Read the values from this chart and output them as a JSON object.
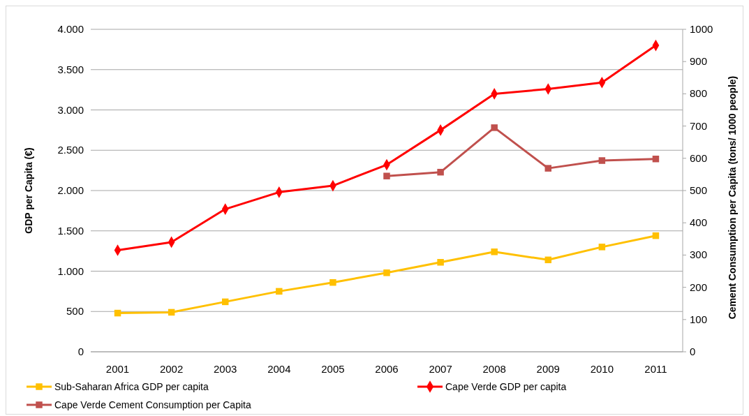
{
  "chart_data": {
    "type": "line",
    "categories": [
      "2001",
      "2002",
      "2003",
      "2004",
      "2005",
      "2006",
      "2007",
      "2008",
      "2009",
      "2010",
      "2011"
    ],
    "ylabel": "GDP per Capita (€)",
    "y2label": "Cement Consumption per Capita (tons/ 1000 people)",
    "ylim": [
      0,
      4000
    ],
    "yticks": [
      0,
      500,
      {
        "value": 1000,
        "label": "1.000"
      },
      {
        "value": 1500,
        "label": "1.500"
      },
      {
        "value": 2000,
        "label": "2.000"
      },
      {
        "value": 2500,
        "label": "2.500"
      },
      {
        "value": 3000,
        "label": "3.000"
      },
      {
        "value": 3500,
        "label": "3.500"
      },
      {
        "value": 4000,
        "label": "4.000"
      }
    ],
    "y2lim": [
      0,
      1000
    ],
    "y2ticks": [
      0,
      100,
      200,
      300,
      400,
      500,
      600,
      700,
      800,
      900,
      1000
    ],
    "grid": "y",
    "legend": "bottom",
    "line_style": "solid",
    "series": [
      {
        "name": "Sub-Saharan Africa GDP per capita",
        "color": "#ffc000",
        "marker": "square",
        "values": [
          480,
          490,
          620,
          750,
          860,
          980,
          1110,
          1240,
          1140,
          1300,
          1440
        ]
      },
      {
        "name": "Cape Verde GDP per capita",
        "color": "#ff0000",
        "marker": "diamond",
        "values": [
          1260,
          1360,
          1770,
          1980,
          2060,
          2320,
          2750,
          3200,
          3260,
          3340,
          3800
        ]
      },
      {
        "name": "Cape Verde Cement Consumption per Capita",
        "color": "#c0504d",
        "marker": "square",
        "axis": "y2",
        "values": [
          null,
          null,
          null,
          null,
          null,
          545,
          557,
          695,
          569,
          593,
          598
        ]
      }
    ]
  }
}
